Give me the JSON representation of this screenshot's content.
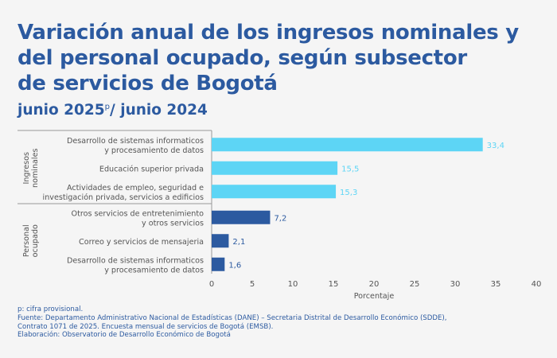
{
  "title_lines": [
    "Variación anual de los ingresos nominales y",
    "del personal ocupado, según subsector",
    "de servicios de Bogotá"
  ],
  "subtitle": {
    "pre": "junio 2025",
    "sup": "p",
    "post": "/ junio 2024"
  },
  "footer_lines": [
    "p: cifra provisional.",
    "Fuente: Departamento Administrativo Nacional de Estadísticas (DANE) – Secretaria Distrital de Desarrollo Económico (SDDE),",
    "Contrato 1071 de 2025. Encuesta mensual de servicios de Bogotá (EMSB).",
    "Elaboración: Observatorio de Desarrollo Económico de Bogotá"
  ],
  "colors": {
    "group1": "#5dd5f5",
    "group2": "#2c5aa0",
    "label1": "#5dd5f5",
    "label2": "#2c5aa0",
    "text": "#555555",
    "axis": "#999999"
  },
  "chart_data": {
    "type": "bar",
    "orientation": "horizontal",
    "xlabel": "Porcentaje",
    "xlim": [
      0,
      40
    ],
    "xticks": [
      0,
      5,
      10,
      15,
      20,
      25,
      30,
      35,
      40
    ],
    "grid": false,
    "groups": [
      {
        "name_lines": [
          "Ingresos",
          "nominales"
        ],
        "color_key": "group1",
        "categories": [
          [
            "Desarrollo de sistemas informaticos",
            "y procesamiento de datos"
          ],
          [
            "Educación superior privada"
          ],
          [
            "Actividades de empleo, seguridad e",
            "investigación privada, servicios a edificios"
          ]
        ],
        "values": [
          33.4,
          15.5,
          15.3
        ],
        "value_labels": [
          "33,4",
          "15,5",
          "15,3"
        ]
      },
      {
        "name_lines": [
          "Personal",
          "ocupado"
        ],
        "color_key": "group2",
        "categories": [
          [
            "Otros servicios de entretenimiento",
            "y otros servicios"
          ],
          [
            "Correo y servicios de mensajeria"
          ],
          [
            "Desarrollo de sistemas informaticos",
            "y procesamiento de datos"
          ]
        ],
        "values": [
          7.2,
          2.1,
          1.6
        ],
        "value_labels": [
          "7,2",
          "2,1",
          "1,6"
        ]
      }
    ]
  }
}
